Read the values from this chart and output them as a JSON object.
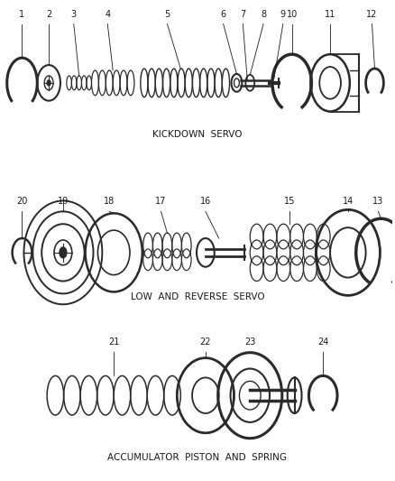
{
  "background_color": "#ffffff",
  "section_labels": [
    "KICKDOWN  SERVO",
    "LOW  AND  REVERSE  SERVO",
    "ACCUMULATOR  PISTON  AND  SPRING"
  ],
  "section_label_fontsize": 7.5,
  "line_color": "#2a2a2a",
  "text_color": "#1a1a1a",
  "label_fontsize": 7.0
}
